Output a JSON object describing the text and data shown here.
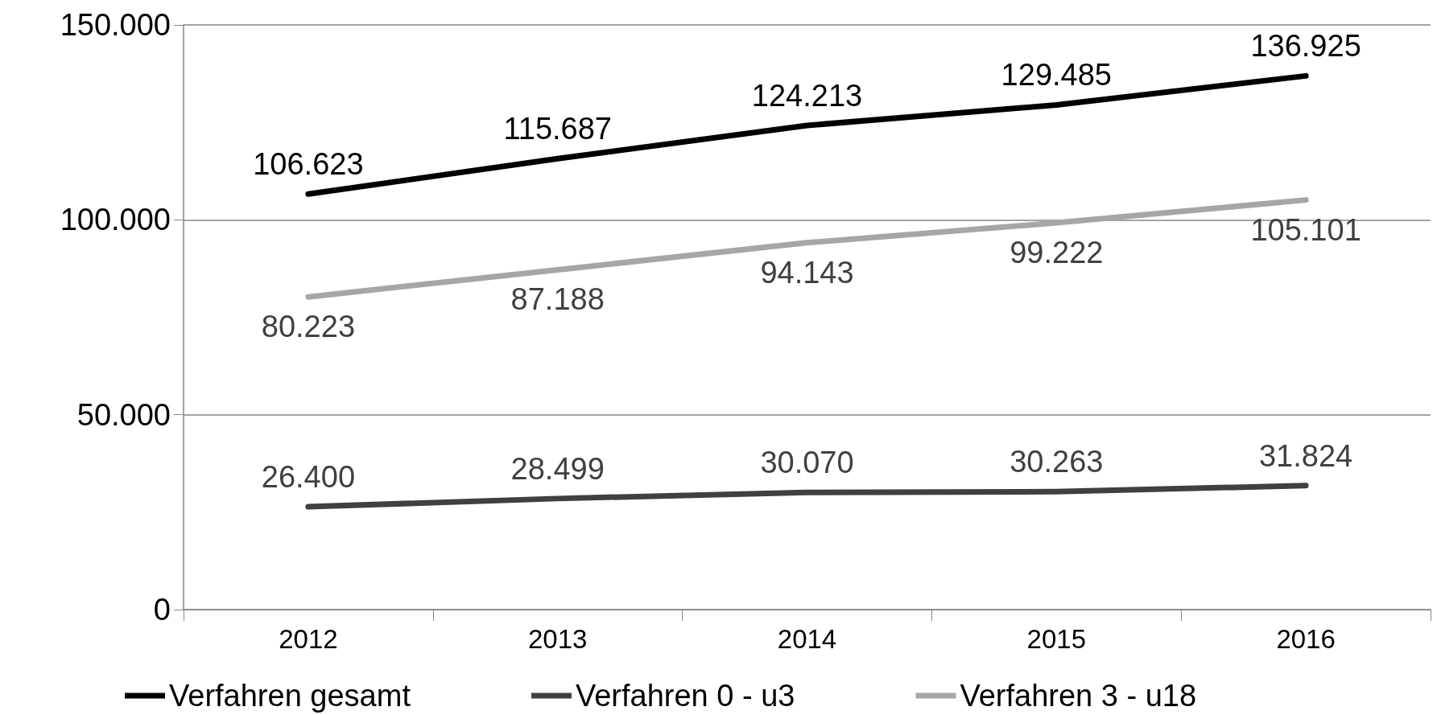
{
  "chart_data": {
    "type": "line",
    "categories": [
      "2012",
      "2013",
      "2014",
      "2015",
      "2016"
    ],
    "series": [
      {
        "name": "Verfahren gesamt",
        "color": "#000000",
        "values": [
          106623,
          115687,
          124213,
          129485,
          136925
        ],
        "value_labels": [
          "106.623",
          "115.687",
          "124.213",
          "129.485",
          "136.925"
        ]
      },
      {
        "name": "Verfahren 0 - u3",
        "color": "#404040",
        "values": [
          26400,
          28499,
          30070,
          30263,
          31824
        ],
        "value_labels": [
          "26.400",
          "28.499",
          "30.070",
          "30.263",
          "31.824"
        ]
      },
      {
        "name": "Verfahren 3 - u18",
        "color": "#a6a6a6",
        "values": [
          80223,
          87188,
          94143,
          99222,
          105101
        ],
        "value_labels": [
          "80.223",
          "87.188",
          "94.143",
          "99.222",
          "105.101"
        ]
      }
    ],
    "ylim": [
      0,
      150000
    ],
    "yticks": [
      {
        "value": 0,
        "label": "0"
      },
      {
        "value": 50000,
        "label": "50.000"
      },
      {
        "value": 100000,
        "label": "100.000"
      },
      {
        "value": 150000,
        "label": "150.000"
      }
    ],
    "grid": "y",
    "legend": "bottom",
    "marker": "none",
    "line_style": "solid"
  }
}
